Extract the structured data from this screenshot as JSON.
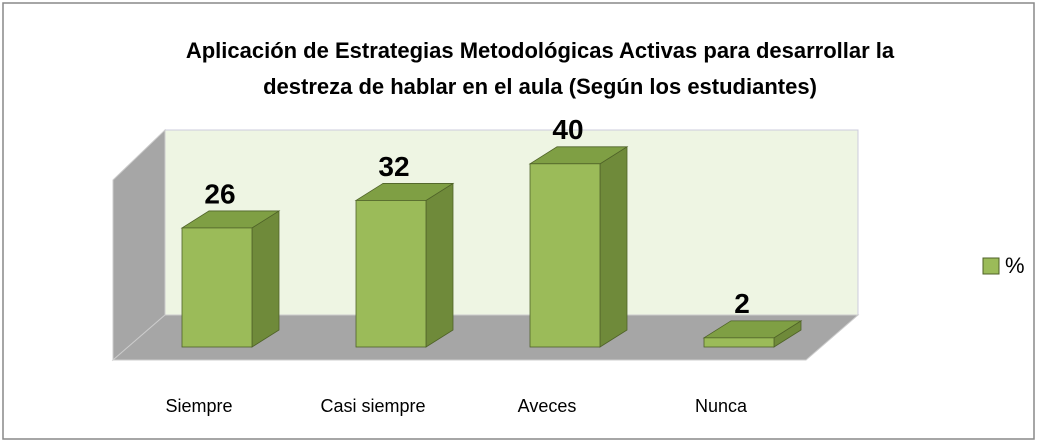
{
  "chart_data": {
    "type": "bar3d",
    "title": [
      "Aplicación de Estrategias Metodológicas Activas para desarrollar la",
      "destreza de hablar en el aula (Según los estudiantes)"
    ],
    "categories": [
      "Siempre",
      "Casi siempre",
      "Aveces",
      "Nunca"
    ],
    "series": [
      {
        "name": "%",
        "color": "#9bbb59",
        "values": [
          26,
          32,
          40,
          2
        ]
      }
    ]
  }
}
